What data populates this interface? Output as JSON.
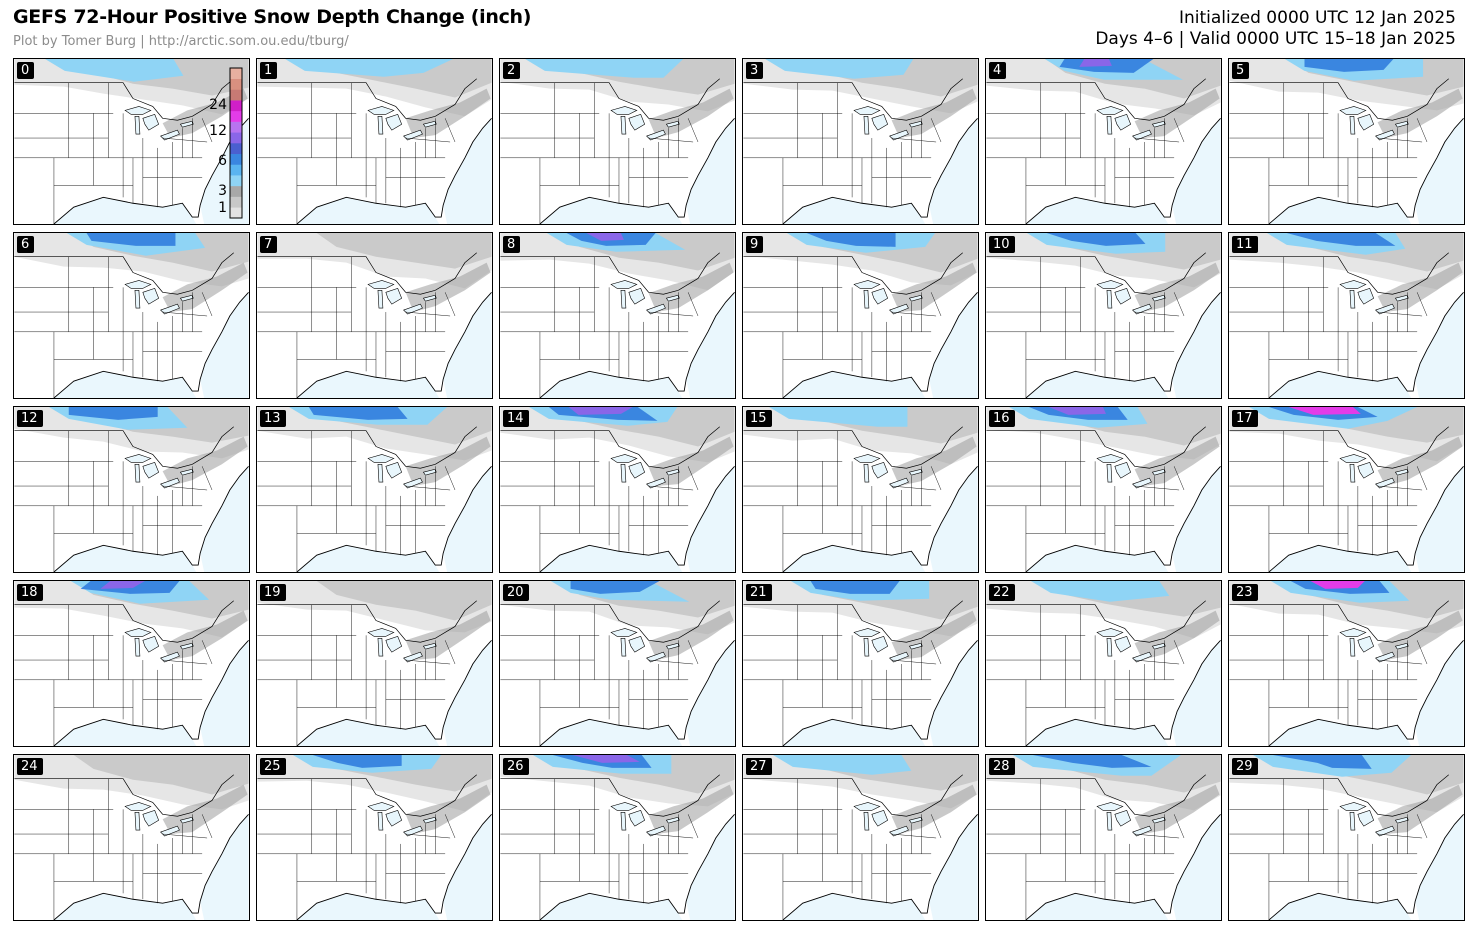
{
  "header": {
    "title": "GEFS 72-Hour Positive Snow Depth Change (inch)",
    "credit": "Plot by Tomer Burg | http://arctic.som.ou.edu/tburg/",
    "initialized": "Initialized 0000 UTC 12 Jan 2025",
    "valid": "Days 4–6 | Valid 0000 UTC 15–18 Jan 2025"
  },
  "members": [
    "0",
    "1",
    "2",
    "3",
    "4",
    "5",
    "6",
    "7",
    "8",
    "9",
    "10",
    "11",
    "12",
    "13",
    "14",
    "15",
    "16",
    "17",
    "18",
    "19",
    "20",
    "21",
    "22",
    "23",
    "24",
    "25",
    "26",
    "27",
    "28",
    "29"
  ],
  "colorbar": {
    "ticks": [
      "1",
      "3",
      "6",
      "12",
      "24"
    ],
    "colors": [
      "#e3e3e3",
      "#c8c8c8",
      "#a8a8a8",
      "#8fd4f5",
      "#5ab4f0",
      "#3a86e0",
      "#4a5fd0",
      "#8a66e8",
      "#b874f0",
      "#e33ce8",
      "#d01fc8",
      "#c77a74",
      "#d99080",
      "#e8b0a0"
    ]
  },
  "map_colors": {
    "land": "#ffffff",
    "ocean": "#eaf7fd",
    "lakes": "#e8f6fc",
    "snow_light": "#e6e6e6",
    "snow_mid": "#c4c4c4",
    "snow_dark": "#9c9c9c",
    "snow_blue_light": "#8fd4f5",
    "snow_blue": "#3a86e0",
    "snow_purple": "#8a66e8",
    "snow_magenta": "#e33ce8"
  },
  "snow_intensity": [
    1,
    1,
    1,
    1,
    3,
    2,
    2,
    0,
    3,
    2,
    2,
    2,
    2,
    2,
    3,
    1,
    3,
    3,
    3,
    0,
    2,
    2,
    1,
    3,
    0,
    2,
    3,
    1,
    2,
    2
  ]
}
